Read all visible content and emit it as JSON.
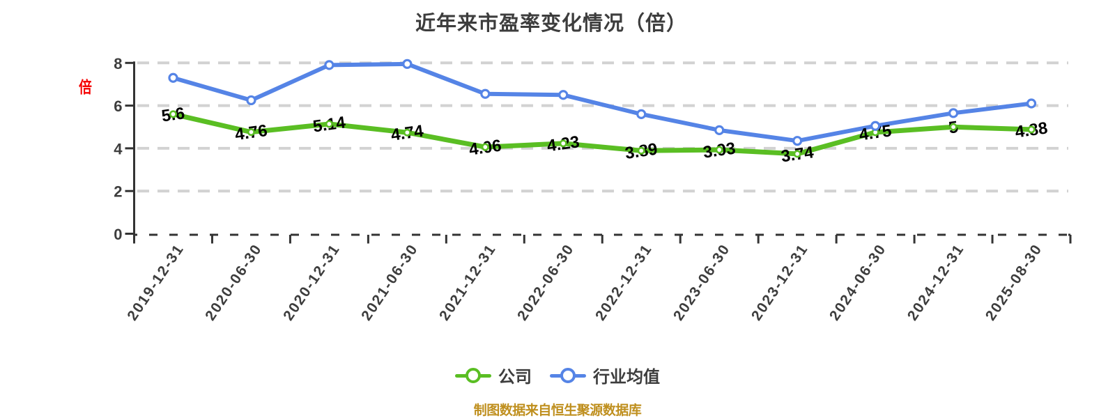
{
  "title": "近年来市盈率变化情况（倍）",
  "y_axis_unit_label": "倍",
  "legend": {
    "company": "公司",
    "industry": "行业均值"
  },
  "footer": "制图数据来自恒生聚源数据库",
  "colors": {
    "company": "#5abe23",
    "industry": "#5584e6",
    "grid": "#d2d2d2",
    "axis": "#333333",
    "tick_text": "#3d3d3d",
    "data_label_text": "#000000",
    "unit_label": "#f50000",
    "footer_text": "#bf8f1e"
  },
  "chart_data": {
    "type": "line",
    "categories": [
      "2019-12-31",
      "2020-06-30",
      "2020-12-31",
      "2021-06-30",
      "2021-12-31",
      "2022-06-30",
      "2022-12-31",
      "2023-06-30",
      "2023-12-31",
      "2024-06-30",
      "2024-12-31",
      "2025-08-30"
    ],
    "series": [
      {
        "name": "公司",
        "color_key": "company",
        "values": [
          5.6,
          4.76,
          5.14,
          4.74,
          4.06,
          4.23,
          3.89,
          3.93,
          3.74,
          4.75,
          5,
          4.88
        ],
        "labels": [
          "5.6",
          "4.76",
          "5.14",
          "4.74",
          "4.06",
          "4.23",
          "3.89",
          "3.93",
          "3.74",
          "4.75",
          "5",
          "4.88"
        ],
        "show_labels": true
      },
      {
        "name": "行业均值",
        "color_key": "industry",
        "values": [
          7.3,
          6.25,
          7.9,
          7.95,
          6.55,
          6.5,
          5.6,
          4.85,
          4.35,
          5.05,
          5.65,
          6.1
        ],
        "labels": [],
        "show_labels": false,
        "values_estimated_from_gridlines": true
      }
    ],
    "ylim": [
      0,
      8
    ],
    "yticks": [
      0,
      2,
      4,
      6,
      8
    ],
    "grid": "dashed-horizontal",
    "legend_position": "bottom"
  }
}
